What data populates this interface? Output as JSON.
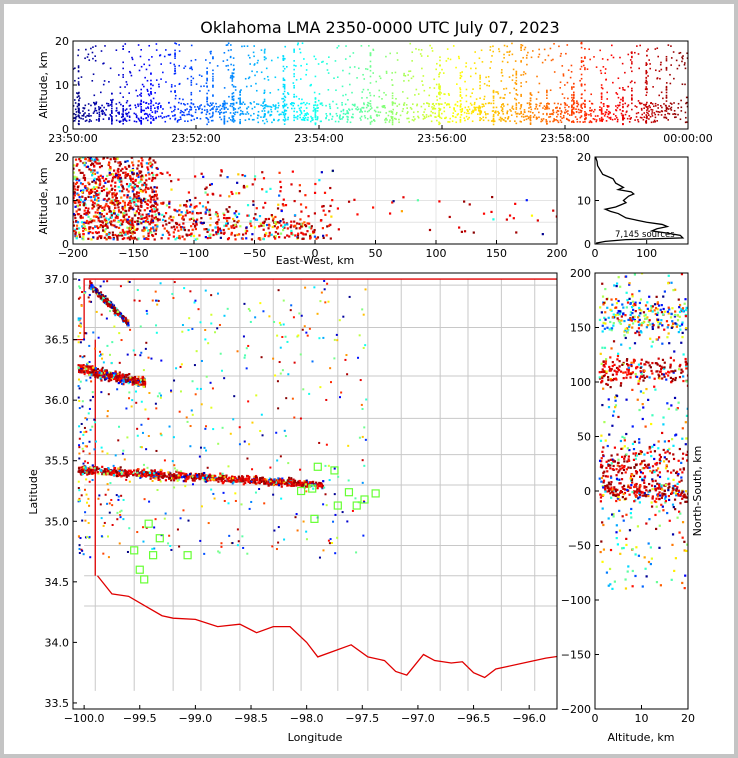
{
  "chart_data": [
    {
      "id": "time_height",
      "type": "scatter",
      "title": "Oklahoma LMA 2350-0000 UTC July 07, 2023",
      "ylabel": "Altitude, km",
      "ylim": [
        0,
        20
      ],
      "yticks": [
        "0",
        "10",
        "20"
      ],
      "xticks": [
        "23:50:00",
        "23:52:00",
        "23:54:00",
        "23:56:00",
        "23:58:00",
        "00:00:00"
      ],
      "xlim_minutes": [
        0,
        10
      ],
      "color_scale": "time (blue → red)"
    },
    {
      "id": "ew_altitude",
      "type": "scatter",
      "xlabel": "East-West, km",
      "ylabel": "Altitude, km",
      "xlim": [
        -200,
        200
      ],
      "ylim": [
        0,
        20
      ],
      "xticks": [
        "−200",
        "−150",
        "−100",
        "−50",
        "0",
        "50",
        "100",
        "150",
        "200"
      ],
      "yticks": [
        "0",
        "10",
        "20"
      ]
    },
    {
      "id": "altitude_histogram",
      "type": "line",
      "annotation": "7,145 sources",
      "xlim": [
        0,
        180
      ],
      "ylim": [
        0,
        20
      ],
      "xticks": [
        "0",
        "100"
      ],
      "yticks": [
        "0",
        "10",
        "20"
      ],
      "profile": [
        [
          0.2,
          2
        ],
        [
          0.6,
          20
        ],
        [
          1.0,
          60
        ],
        [
          1.4,
          170
        ],
        [
          2.0,
          165
        ],
        [
          2.5,
          140
        ],
        [
          3.0,
          110
        ],
        [
          3.5,
          120
        ],
        [
          4.0,
          140
        ],
        [
          4.5,
          130
        ],
        [
          5.0,
          100
        ],
        [
          5.5,
          80
        ],
        [
          6.0,
          60
        ],
        [
          7.0,
          45
        ],
        [
          7.5,
          30
        ],
        [
          8.0,
          20
        ],
        [
          8.5,
          40
        ],
        [
          9.0,
          50
        ],
        [
          9.5,
          60
        ],
        [
          10,
          55
        ],
        [
          11,
          65
        ],
        [
          11.5,
          75
        ],
        [
          12,
          70
        ],
        [
          12.5,
          45
        ],
        [
          13,
          55
        ],
        [
          14,
          40
        ],
        [
          15,
          35
        ],
        [
          16,
          15
        ],
        [
          17,
          10
        ],
        [
          18,
          5
        ],
        [
          19,
          4
        ],
        [
          20,
          1
        ]
      ]
    },
    {
      "id": "plan_view",
      "type": "scatter",
      "xlabel": "Longitude",
      "ylabel": "Latitude",
      "xlim": [
        -100.1,
        -95.75
      ],
      "ylim": [
        33.45,
        37.05
      ],
      "xticks": [
        "−100.0",
        "−99.5",
        "−99.0",
        "−98.5",
        "−98.0",
        "−97.5",
        "−97.0",
        "−96.5",
        "−96.0"
      ],
      "yticks": [
        "33.5",
        "34.0",
        "34.5",
        "35.0",
        "35.5",
        "36.0",
        "36.5",
        "37.0"
      ],
      "stations": [
        [
          -97.9,
          35.45
        ],
        [
          -97.75,
          35.42
        ],
        [
          -98.05,
          35.25
        ],
        [
          -97.95,
          35.27
        ],
        [
          -97.62,
          35.24
        ],
        [
          -97.48,
          35.18
        ],
        [
          -97.38,
          35.23
        ],
        [
          -97.55,
          35.13
        ],
        [
          -97.72,
          35.13
        ],
        [
          -97.93,
          35.02
        ],
        [
          -99.42,
          34.98
        ],
        [
          -99.32,
          34.86
        ],
        [
          -99.55,
          34.76
        ],
        [
          -99.38,
          34.72
        ],
        [
          -99.07,
          34.72
        ],
        [
          -99.5,
          34.6
        ],
        [
          -99.46,
          34.52
        ]
      ]
    },
    {
      "id": "altitude_ns",
      "type": "scatter",
      "xlabel": "Altitude, km",
      "ylabel": "North-South, km",
      "xlim": [
        0,
        20
      ],
      "ylim": [
        -200,
        200
      ],
      "xticks": [
        "0",
        "10",
        "20"
      ],
      "yticks": [
        "−200",
        "−150",
        "−100",
        "−50",
        "0",
        "50",
        "100",
        "150",
        "200"
      ]
    }
  ]
}
